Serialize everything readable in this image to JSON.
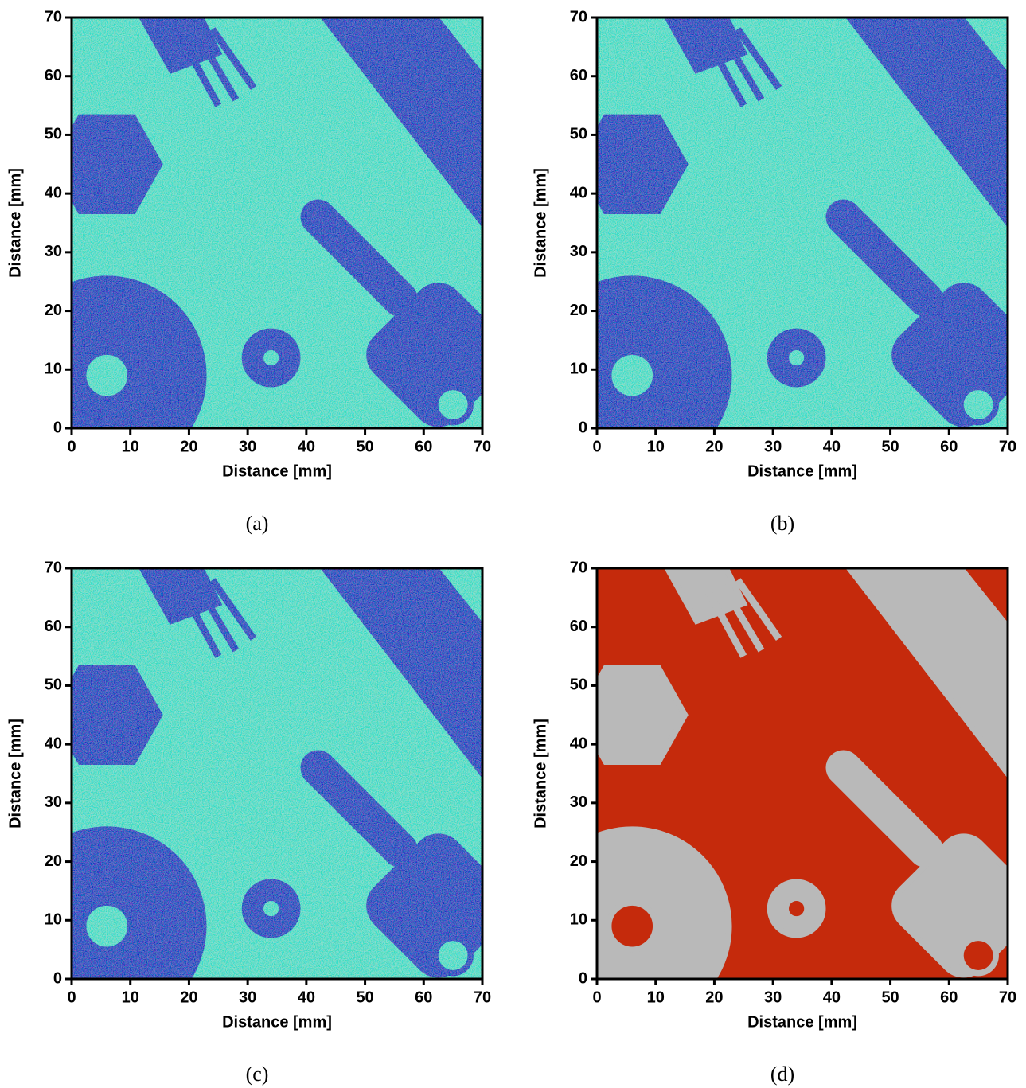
{
  "chart_data": [
    {
      "type": "heatmap",
      "xlabel": "Distance [mm]",
      "ylabel": "Distance [mm]",
      "xlim": [
        0,
        70
      ],
      "ylim": [
        0,
        70
      ],
      "xticks": [
        0,
        10,
        20,
        30,
        40,
        50,
        60,
        70
      ],
      "yticks": [
        0,
        10,
        20,
        30,
        40,
        50,
        60,
        70
      ],
      "caption": "(a)"
    },
    {
      "type": "heatmap",
      "xlabel": "Distance [mm]",
      "ylabel": "Distance [mm]",
      "xlim": [
        0,
        70
      ],
      "ylim": [
        0,
        70
      ],
      "xticks": [
        0,
        10,
        20,
        30,
        40,
        50,
        60,
        70
      ],
      "yticks": [
        0,
        10,
        20,
        30,
        40,
        50,
        60,
        70
      ],
      "caption": "(b)"
    },
    {
      "type": "heatmap",
      "xlabel": "Distance [mm]",
      "ylabel": "Distance [mm]",
      "xlim": [
        0,
        70
      ],
      "ylim": [
        0,
        70
      ],
      "xticks": [
        0,
        10,
        20,
        30,
        40,
        50,
        60,
        70
      ],
      "yticks": [
        0,
        10,
        20,
        30,
        40,
        50,
        60,
        70
      ],
      "caption": "(c)"
    },
    {
      "type": "image",
      "xlabel": "Distance [mm]",
      "ylabel": "Distance [mm]",
      "xlim": [
        0,
        70
      ],
      "ylim": [
        0,
        70
      ],
      "xticks": [
        0,
        10,
        20,
        30,
        40,
        50,
        60,
        70
      ],
      "yticks": [
        0,
        10,
        20,
        30,
        40,
        50,
        60,
        70
      ],
      "caption": "(d)"
    }
  ]
}
